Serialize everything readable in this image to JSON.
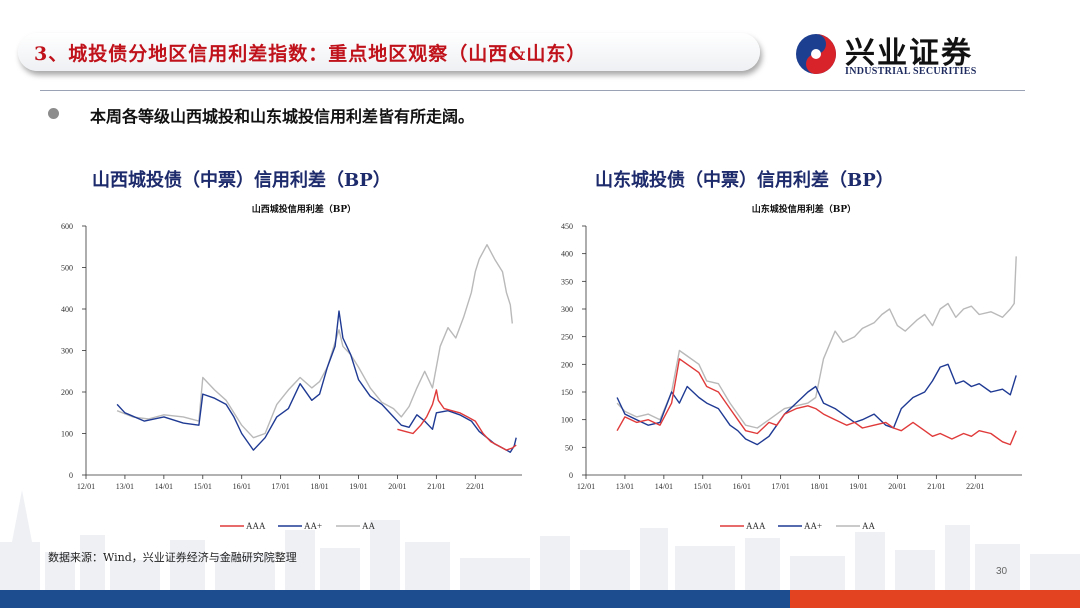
{
  "slide": {
    "title": "3、城投债分地区信用利差指数：重点地区观察（山西&山东）",
    "bullet": "本周各等级山西城投和山东城投信用利差皆有所走阔。",
    "source": "数据来源：Wind，兴业证券经济与金融研究院整理",
    "page_number": "30"
  },
  "logo": {
    "name": "兴业证券",
    "english": "INDUSTRIAL SECURITIES",
    "icon": "swirl-logo-icon"
  },
  "colors": {
    "title_red": "#c0121b",
    "heading_navy": "#1d2a6b",
    "AAA": "#e03a3a",
    "AA+": "#1f3a93",
    "AA": "#b9b9b9",
    "footer_blue": "#1d4d8f",
    "footer_red": "#e44322"
  },
  "chart_data": [
    {
      "type": "line",
      "heading": "山西城投债（中票）信用利差（BP）",
      "title": "山西城投信用利差（BP）",
      "x_ticks": [
        "12/01",
        "13/01",
        "14/01",
        "15/01",
        "16/01",
        "17/01",
        "18/01",
        "19/01",
        "20/01",
        "21/01",
        "22/01"
      ],
      "ylim": [
        0,
        600
      ],
      "y_ticks": [
        0,
        100,
        200,
        300,
        400,
        500,
        600
      ],
      "legend": [
        "AAA",
        "AA+",
        "AA"
      ],
      "legend_position": "bottom",
      "series": [
        {
          "name": "AAA",
          "color": "#e03a3a",
          "points": [
            [
              2020.0,
              110
            ],
            [
              2020.2,
              105
            ],
            [
              2020.4,
              100
            ],
            [
              2020.6,
              120
            ],
            [
              2020.75,
              140
            ],
            [
              2020.9,
              170
            ],
            [
              2021.0,
              205
            ],
            [
              2021.05,
              180
            ],
            [
              2021.2,
              160
            ],
            [
              2021.4,
              155
            ],
            [
              2021.6,
              150
            ],
            [
              2021.8,
              140
            ],
            [
              2022.0,
              130
            ],
            [
              2022.2,
              100
            ],
            [
              2022.4,
              80
            ],
            [
              2022.6,
              70
            ],
            [
              2022.8,
              60
            ],
            [
              2022.95,
              65
            ],
            [
              2023.05,
              72
            ]
          ]
        },
        {
          "name": "AA+",
          "color": "#1f3a93",
          "points": [
            [
              2012.8,
              170
            ],
            [
              2013.0,
              150
            ],
            [
              2013.5,
              130
            ],
            [
              2014.0,
              140
            ],
            [
              2014.5,
              125
            ],
            [
              2014.9,
              120
            ],
            [
              2015.0,
              195
            ],
            [
              2015.3,
              185
            ],
            [
              2015.6,
              170
            ],
            [
              2015.8,
              140
            ],
            [
              2016.0,
              100
            ],
            [
              2016.3,
              60
            ],
            [
              2016.6,
              90
            ],
            [
              2016.9,
              140
            ],
            [
              2017.2,
              160
            ],
            [
              2017.5,
              220
            ],
            [
              2017.8,
              180
            ],
            [
              2018.0,
              195
            ],
            [
              2018.2,
              260
            ],
            [
              2018.4,
              310
            ],
            [
              2018.5,
              395
            ],
            [
              2018.6,
              330
            ],
            [
              2018.8,
              290
            ],
            [
              2019.0,
              230
            ],
            [
              2019.3,
              190
            ],
            [
              2019.6,
              170
            ],
            [
              2019.9,
              140
            ],
            [
              2020.1,
              120
            ],
            [
              2020.3,
              115
            ],
            [
              2020.5,
              145
            ],
            [
              2020.7,
              130
            ],
            [
              2020.9,
              110
            ],
            [
              2021.0,
              150
            ],
            [
              2021.3,
              155
            ],
            [
              2021.6,
              145
            ],
            [
              2021.9,
              130
            ],
            [
              2022.1,
              105
            ],
            [
              2022.3,
              90
            ],
            [
              2022.5,
              75
            ],
            [
              2022.7,
              65
            ],
            [
              2022.9,
              55
            ],
            [
              2023.0,
              70
            ],
            [
              2023.05,
              90
            ]
          ]
        },
        {
          "name": "AA",
          "color": "#b9b9b9",
          "points": [
            [
              2012.8,
              155
            ],
            [
              2013.2,
              140
            ],
            [
              2013.6,
              135
            ],
            [
              2014.0,
              145
            ],
            [
              2014.5,
              140
            ],
            [
              2014.9,
              130
            ],
            [
              2015.0,
              235
            ],
            [
              2015.3,
              205
            ],
            [
              2015.6,
              180
            ],
            [
              2015.8,
              150
            ],
            [
              2016.0,
              120
            ],
            [
              2016.3,
              90
            ],
            [
              2016.6,
              100
            ],
            [
              2016.9,
              170
            ],
            [
              2017.2,
              205
            ],
            [
              2017.5,
              235
            ],
            [
              2017.8,
              210
            ],
            [
              2018.0,
              225
            ],
            [
              2018.2,
              260
            ],
            [
              2018.4,
              320
            ],
            [
              2018.5,
              350
            ],
            [
              2018.6,
              310
            ],
            [
              2018.8,
              290
            ],
            [
              2019.0,
              260
            ],
            [
              2019.3,
              210
            ],
            [
              2019.6,
              175
            ],
            [
              2019.9,
              160
            ],
            [
              2020.1,
              140
            ],
            [
              2020.3,
              165
            ],
            [
              2020.5,
              210
            ],
            [
              2020.7,
              250
            ],
            [
              2020.9,
              210
            ],
            [
              2021.1,
              310
            ],
            [
              2021.3,
              355
            ],
            [
              2021.5,
              330
            ],
            [
              2021.7,
              380
            ],
            [
              2021.9,
              440
            ],
            [
              2022.0,
              490
            ],
            [
              2022.1,
              520
            ],
            [
              2022.3,
              555
            ],
            [
              2022.5,
              520
            ],
            [
              2022.7,
              490
            ],
            [
              2022.8,
              440
            ],
            [
              2022.9,
              410
            ],
            [
              2022.95,
              365
            ]
          ]
        }
      ]
    },
    {
      "type": "line",
      "heading": "山东城投债（中票）信用利差（BP）",
      "title": "山东城投信用利差（BP）",
      "x_ticks": [
        "12/01",
        "13/01",
        "14/01",
        "15/01",
        "16/01",
        "17/01",
        "18/01",
        "19/01",
        "20/01",
        "21/01",
        "22/01"
      ],
      "ylim": [
        0,
        450
      ],
      "y_ticks": [
        0,
        50,
        100,
        150,
        200,
        250,
        300,
        350,
        400,
        450
      ],
      "legend": [
        "AAA",
        "AA+",
        "AA"
      ],
      "legend_position": "bottom",
      "series": [
        {
          "name": "AAA",
          "color": "#e03a3a",
          "points": [
            [
              2012.8,
              80
            ],
            [
              2013.0,
              105
            ],
            [
              2013.3,
              95
            ],
            [
              2013.6,
              100
            ],
            [
              2013.9,
              90
            ],
            [
              2014.2,
              130
            ],
            [
              2014.4,
              210
            ],
            [
              2014.6,
              200
            ],
            [
              2014.9,
              185
            ],
            [
              2015.1,
              160
            ],
            [
              2015.4,
              150
            ],
            [
              2015.7,
              120
            ],
            [
              2015.9,
              100
            ],
            [
              2016.1,
              80
            ],
            [
              2016.4,
              75
            ],
            [
              2016.7,
              95
            ],
            [
              2016.9,
              90
            ],
            [
              2017.1,
              110
            ],
            [
              2017.4,
              120
            ],
            [
              2017.7,
              125
            ],
            [
              2017.9,
              120
            ],
            [
              2018.1,
              110
            ],
            [
              2018.4,
              100
            ],
            [
              2018.7,
              90
            ],
            [
              2018.9,
              95
            ],
            [
              2019.1,
              85
            ],
            [
              2019.4,
              90
            ],
            [
              2019.7,
              95
            ],
            [
              2019.9,
              85
            ],
            [
              2020.1,
              80
            ],
            [
              2020.4,
              95
            ],
            [
              2020.7,
              80
            ],
            [
              2020.9,
              70
            ],
            [
              2021.1,
              75
            ],
            [
              2021.4,
              65
            ],
            [
              2021.7,
              75
            ],
            [
              2021.9,
              70
            ],
            [
              2022.1,
              80
            ],
            [
              2022.4,
              75
            ],
            [
              2022.7,
              60
            ],
            [
              2022.9,
              55
            ],
            [
              2023.05,
              80
            ]
          ]
        },
        {
          "name": "AA+",
          "color": "#1f3a93",
          "points": [
            [
              2012.8,
              140
            ],
            [
              2013.0,
              110
            ],
            [
              2013.3,
              100
            ],
            [
              2013.6,
              90
            ],
            [
              2013.9,
              95
            ],
            [
              2014.2,
              150
            ],
            [
              2014.4,
              130
            ],
            [
              2014.6,
              160
            ],
            [
              2014.9,
              140
            ],
            [
              2015.1,
              130
            ],
            [
              2015.4,
              120
            ],
            [
              2015.7,
              90
            ],
            [
              2015.9,
              80
            ],
            [
              2016.1,
              65
            ],
            [
              2016.4,
              55
            ],
            [
              2016.7,
              70
            ],
            [
              2016.9,
              90
            ],
            [
              2017.1,
              110
            ],
            [
              2017.4,
              130
            ],
            [
              2017.7,
              150
            ],
            [
              2017.9,
              160
            ],
            [
              2018.1,
              130
            ],
            [
              2018.4,
              120
            ],
            [
              2018.7,
              105
            ],
            [
              2018.9,
              95
            ],
            [
              2019.1,
              100
            ],
            [
              2019.4,
              110
            ],
            [
              2019.7,
              90
            ],
            [
              2019.9,
              85
            ],
            [
              2020.1,
              120
            ],
            [
              2020.4,
              140
            ],
            [
              2020.7,
              150
            ],
            [
              2020.9,
              170
            ],
            [
              2021.1,
              195
            ],
            [
              2021.3,
              200
            ],
            [
              2021.5,
              165
            ],
            [
              2021.7,
              170
            ],
            [
              2021.9,
              160
            ],
            [
              2022.1,
              165
            ],
            [
              2022.4,
              150
            ],
            [
              2022.7,
              155
            ],
            [
              2022.9,
              145
            ],
            [
              2023.05,
              180
            ]
          ]
        },
        {
          "name": "AA",
          "color": "#b9b9b9",
          "points": [
            [
              2012.8,
              130
            ],
            [
              2013.0,
              115
            ],
            [
              2013.3,
              105
            ],
            [
              2013.6,
              110
            ],
            [
              2013.9,
              100
            ],
            [
              2014.2,
              150
            ],
            [
              2014.4,
              225
            ],
            [
              2014.6,
              215
            ],
            [
              2014.9,
              200
            ],
            [
              2015.1,
              170
            ],
            [
              2015.4,
              165
            ],
            [
              2015.7,
              130
            ],
            [
              2015.9,
              110
            ],
            [
              2016.1,
              90
            ],
            [
              2016.4,
              85
            ],
            [
              2016.7,
              100
            ],
            [
              2016.9,
              110
            ],
            [
              2017.1,
              120
            ],
            [
              2017.4,
              125
            ],
            [
              2017.7,
              130
            ],
            [
              2017.9,
              140
            ],
            [
              2018.1,
              210
            ],
            [
              2018.4,
              260
            ],
            [
              2018.6,
              240
            ],
            [
              2018.9,
              250
            ],
            [
              2019.1,
              265
            ],
            [
              2019.4,
              275
            ],
            [
              2019.6,
              290
            ],
            [
              2019.8,
              300
            ],
            [
              2020.0,
              270
            ],
            [
              2020.2,
              260
            ],
            [
              2020.5,
              280
            ],
            [
              2020.7,
              290
            ],
            [
              2020.9,
              270
            ],
            [
              2021.1,
              300
            ],
            [
              2021.3,
              310
            ],
            [
              2021.5,
              285
            ],
            [
              2021.7,
              300
            ],
            [
              2021.9,
              305
            ],
            [
              2022.1,
              290
            ],
            [
              2022.4,
              295
            ],
            [
              2022.7,
              285
            ],
            [
              2022.9,
              300
            ],
            [
              2023.0,
              310
            ],
            [
              2023.05,
              395
            ]
          ]
        }
      ]
    }
  ]
}
